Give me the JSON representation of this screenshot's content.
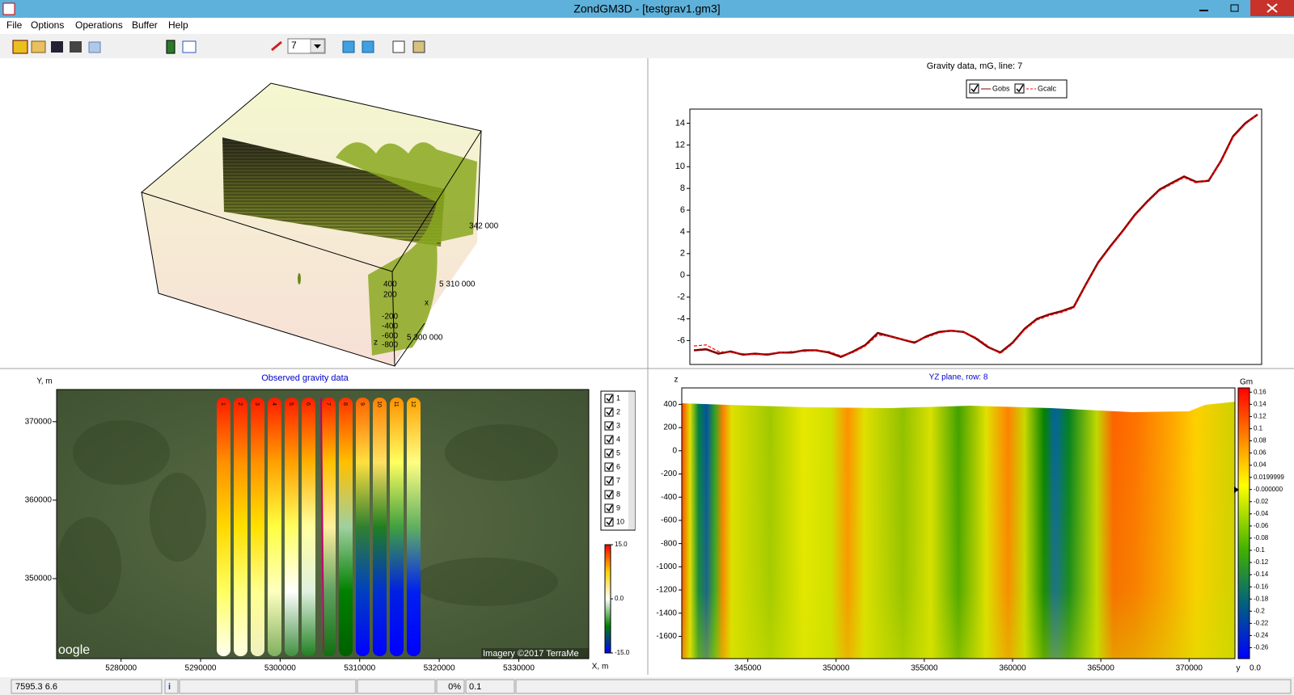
{
  "window": {
    "title": "ZondGM3D - [testgrav1.gm3]"
  },
  "menu": [
    "File",
    "Options",
    "Operations",
    "Buffer",
    "Help"
  ],
  "toolbar": {
    "line_select": "7"
  },
  "view3d": {
    "labels": [
      "400",
      "200",
      "-200",
      "-400",
      "-600",
      "-800",
      "z",
      "5 310 000",
      "x",
      "5 300 000",
      "342 000"
    ]
  },
  "chart_data": {
    "type": "line",
    "title": "Gravity data, mG,  line: 7",
    "series": [
      {
        "name": "Gobs",
        "color": "#800000",
        "values": [
          -6.9,
          -6.8,
          -7.2,
          -7.0,
          -7.3,
          -7.2,
          -7.3,
          -7.1,
          -7.1,
          -6.9,
          -6.9,
          -7.1,
          -7.5,
          -7.0,
          -6.4,
          -5.3,
          -5.6,
          -5.9,
          -6.2,
          -5.6,
          -5.2,
          -5.1,
          -5.2,
          -5.8,
          -6.6,
          -7.1,
          -6.2,
          -4.9,
          -4.0,
          -3.6,
          -3.3,
          -2.9,
          -0.8,
          1.2,
          2.7,
          4.1,
          5.6,
          6.8,
          7.9,
          8.5,
          9.1,
          8.6,
          8.7,
          10.5,
          12.8,
          14.0,
          14.8
        ]
      },
      {
        "name": "Gcalc",
        "color": "#ff0000",
        "values": [
          -6.5,
          -6.4,
          -7.0,
          -7.1,
          -7.2,
          -7.3,
          -7.2,
          -7.1,
          -7.0,
          -7.0,
          -6.9,
          -7.0,
          -7.4,
          -7.1,
          -6.5,
          -5.5,
          -5.6,
          -5.9,
          -6.1,
          -5.7,
          -5.3,
          -5.1,
          -5.2,
          -5.7,
          -6.5,
          -7.2,
          -6.3,
          -5.0,
          -4.1,
          -3.7,
          -3.4,
          -3.0,
          -0.9,
          1.1,
          2.6,
          4.0,
          5.5,
          6.7,
          7.8,
          8.4,
          9.0,
          8.5,
          8.8,
          10.4,
          12.7,
          13.9,
          14.8
        ]
      }
    ],
    "ylim": [
      -8.2,
      15.3
    ],
    "yticks": [
      -6,
      -4,
      -2,
      0,
      2,
      4,
      6,
      8,
      10,
      12,
      14
    ]
  },
  "map": {
    "title": "Observed gravity data",
    "ylabel": "Y, m",
    "xlabel": "X, m",
    "xlim": [
      5271900,
      5338800
    ],
    "xticks": [
      5280000,
      5290000,
      5300000,
      5310000,
      5320000,
      5330000
    ],
    "ylim": [
      339800,
      374100
    ],
    "yticks": [
      350000,
      360000,
      370000
    ],
    "profiles": [
      "1",
      "2",
      "3",
      "4",
      "5",
      "6",
      "7",
      "8",
      "9",
      "10",
      "11",
      "12"
    ],
    "lines": [
      "1",
      "2",
      "3",
      "4",
      "5",
      "6",
      "7",
      "8",
      "9",
      "10"
    ],
    "colorbar": {
      "vlim": [
        -15,
        15
      ],
      "ticks": [
        {
          "value": 15,
          "label": "15.0"
        },
        {
          "value": 0,
          "label": "0.0"
        },
        {
          "value": -15,
          "label": "-15.0"
        }
      ]
    },
    "attribution": [
      "oogle",
      "Imagery ©2017 TerraMe"
    ]
  },
  "section": {
    "title": "YZ plane, row: 8",
    "zlabel": "z",
    "ylabel": "y",
    "zlim": [
      -1792,
      542
    ],
    "zticks": [
      400,
      200,
      0,
      -200,
      -400,
      -600,
      -800,
      -1000,
      -1200,
      -1400,
      -1600
    ],
    "ylim": [
      341260,
      372600
    ],
    "yticks": [
      345000,
      350000,
      355000,
      360000,
      365000,
      370000
    ],
    "colorbar": {
      "label": "Gm",
      "vlim": [
        -0.278,
        0.167
      ],
      "ticks": [
        0.16,
        0.14,
        0.12,
        0.1,
        0.08,
        0.06,
        0.04,
        0.0199999,
        {
          "value": 0,
          "label": "-0.000000"
        },
        -0.02,
        -0.04,
        -0.06,
        -0.08,
        -0.1,
        -0.12,
        -0.14,
        -0.16,
        -0.18,
        -0.2,
        -0.22,
        -0.24,
        -0.26
      ],
      "bottom_label": "0.0"
    }
  },
  "status": [
    "7595.3 6.6",
    "0%",
    "0.1"
  ]
}
